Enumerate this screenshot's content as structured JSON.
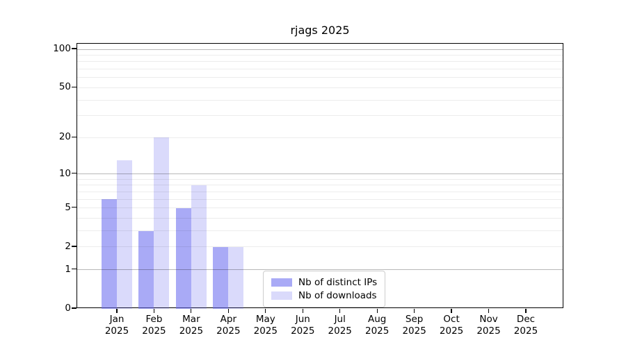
{
  "chart_data": {
    "type": "bar",
    "title": "rjags 2025",
    "months": [
      "Jan",
      "Feb",
      "Mar",
      "Apr",
      "May",
      "Jun",
      "Jul",
      "Aug",
      "Sep",
      "Oct",
      "Nov",
      "Dec"
    ],
    "year": "2025",
    "series": [
      {
        "name": "Nb of distinct IPs",
        "color": "rgba(106,108,240,0.58)",
        "color_hex_on_white": "#a9aaf6",
        "values": [
          6,
          3,
          5,
          2,
          0,
          0,
          0,
          0,
          0,
          0,
          0,
          0
        ]
      },
      {
        "name": "Nb of downloads",
        "color": "rgba(106,108,240,0.25)",
        "color_hex_on_white": "#dadcfa",
        "values": [
          13,
          20,
          8,
          2,
          0,
          0,
          0,
          0,
          0,
          0,
          0,
          0
        ]
      }
    ],
    "y_axis": {
      "scale": "log10(1+value)",
      "tick_values": [
        0,
        1,
        2,
        5,
        10,
        20,
        50,
        100
      ],
      "major_gridlines": [
        1,
        10,
        100
      ],
      "minor_gridlines": [
        2,
        3,
        4,
        5,
        6,
        7,
        8,
        9,
        20,
        30,
        40,
        50,
        60,
        70,
        80,
        90
      ],
      "top_value": 110
    },
    "x_axis": {
      "tick_label_format": "month newline year"
    },
    "legend": {
      "position": "bottom-center",
      "entries": [
        "Nb of distinct IPs",
        "Nb of downloads"
      ]
    },
    "grid": true
  },
  "colors": {
    "background": "#ffffff",
    "axis_spine": "#000000",
    "grid_minor": "rgba(0,0,0,0.075)",
    "grid_major": "rgba(0,0,0,0.28)",
    "text": "#000000"
  }
}
